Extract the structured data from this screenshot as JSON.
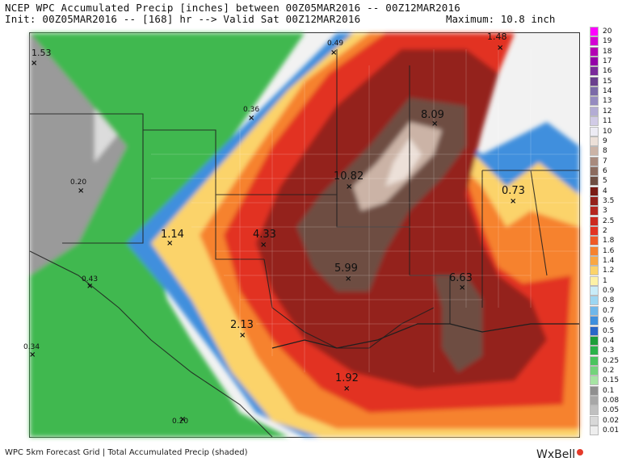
{
  "header": {
    "line1": "NCEP WPC Accumulated Precip [inches] between 00Z05MAR2016 -- 00Z12MAR2016",
    "line2": "Init: 00Z05MAR2016 -- [168] hr --> Valid Sat 00Z12MAR2016",
    "maximum": "Maximum: 10.8 inch"
  },
  "footer": "WPC 5km Forecast Grid | Total Accumulated Precip (shaded)",
  "brand": "WxBell",
  "colors": {
    "brand_dot": "#e53a2a"
  },
  "legend": [
    {
      "label": "20",
      "color": "#ff00ff"
    },
    {
      "label": "19",
      "color": "#d400d4"
    },
    {
      "label": "18",
      "color": "#b300b3"
    },
    {
      "label": "17",
      "color": "#9400a8"
    },
    {
      "label": "16",
      "color": "#7a2a9a"
    },
    {
      "label": "15",
      "color": "#6a3f8e"
    },
    {
      "label": "14",
      "color": "#7b6aa8"
    },
    {
      "label": "13",
      "color": "#958bc0"
    },
    {
      "label": "12",
      "color": "#b3acd4"
    },
    {
      "label": "11",
      "color": "#d1cbe6"
    },
    {
      "label": "10",
      "color": "#ecebf4"
    },
    {
      "label": "9",
      "color": "#ece0d8"
    },
    {
      "label": "8",
      "color": "#cbb3a6"
    },
    {
      "label": "7",
      "color": "#a88a7d"
    },
    {
      "label": "6",
      "color": "#8b6b5e"
    },
    {
      "label": "5",
      "color": "#6e4e42"
    },
    {
      "label": "4",
      "color": "#7a1b14"
    },
    {
      "label": "3.5",
      "color": "#94201a"
    },
    {
      "label": "3",
      "color": "#b5261f"
    },
    {
      "label": "2.5",
      "color": "#cc2a20"
    },
    {
      "label": "2",
      "color": "#e23322"
    },
    {
      "label": "1.8",
      "color": "#ef5a27"
    },
    {
      "label": "1.6",
      "color": "#f6822f"
    },
    {
      "label": "1.4",
      "color": "#f9a743"
    },
    {
      "label": "1.2",
      "color": "#fbd36a"
    },
    {
      "label": "1",
      "color": "#fdf1a6"
    },
    {
      "label": "0.9",
      "color": "#c9ecf8"
    },
    {
      "label": "0.8",
      "color": "#9cd6f2"
    },
    {
      "label": "0.7",
      "color": "#6fb7ea"
    },
    {
      "label": "0.6",
      "color": "#3f8fdd"
    },
    {
      "label": "0.5",
      "color": "#2a66c8"
    },
    {
      "label": "0.4",
      "color": "#1d9e3a"
    },
    {
      "label": "0.3",
      "color": "#2bb24a"
    },
    {
      "label": "0.25",
      "color": "#4ac45e"
    },
    {
      "label": "0.2",
      "color": "#73d37b"
    },
    {
      "label": "0.15",
      "color": "#a6e4a3"
    },
    {
      "label": "0.1",
      "color": "#8f8f8f"
    },
    {
      "label": "0.08",
      "color": "#a7a7a7"
    },
    {
      "label": "0.05",
      "color": "#c0c0c0"
    },
    {
      "label": "0.02",
      "color": "#d8d8d8"
    },
    {
      "label": "0.01",
      "color": "#eeeeee"
    }
  ],
  "points": [
    {
      "label": "1.53"
    },
    {
      "label": "0.49"
    },
    {
      "label": "1.48"
    },
    {
      "label": "0.36"
    },
    {
      "label": "8.09"
    },
    {
      "label": "10.82"
    },
    {
      "label": "0.20"
    },
    {
      "label": "0.73"
    },
    {
      "label": "1.14"
    },
    {
      "label": "4.33"
    },
    {
      "label": "5.99"
    },
    {
      "label": "6.63"
    },
    {
      "label": "0.43"
    },
    {
      "label": "2.13"
    },
    {
      "label": "0.34"
    },
    {
      "label": "1.92"
    },
    {
      "label": "0.20"
    }
  ]
}
